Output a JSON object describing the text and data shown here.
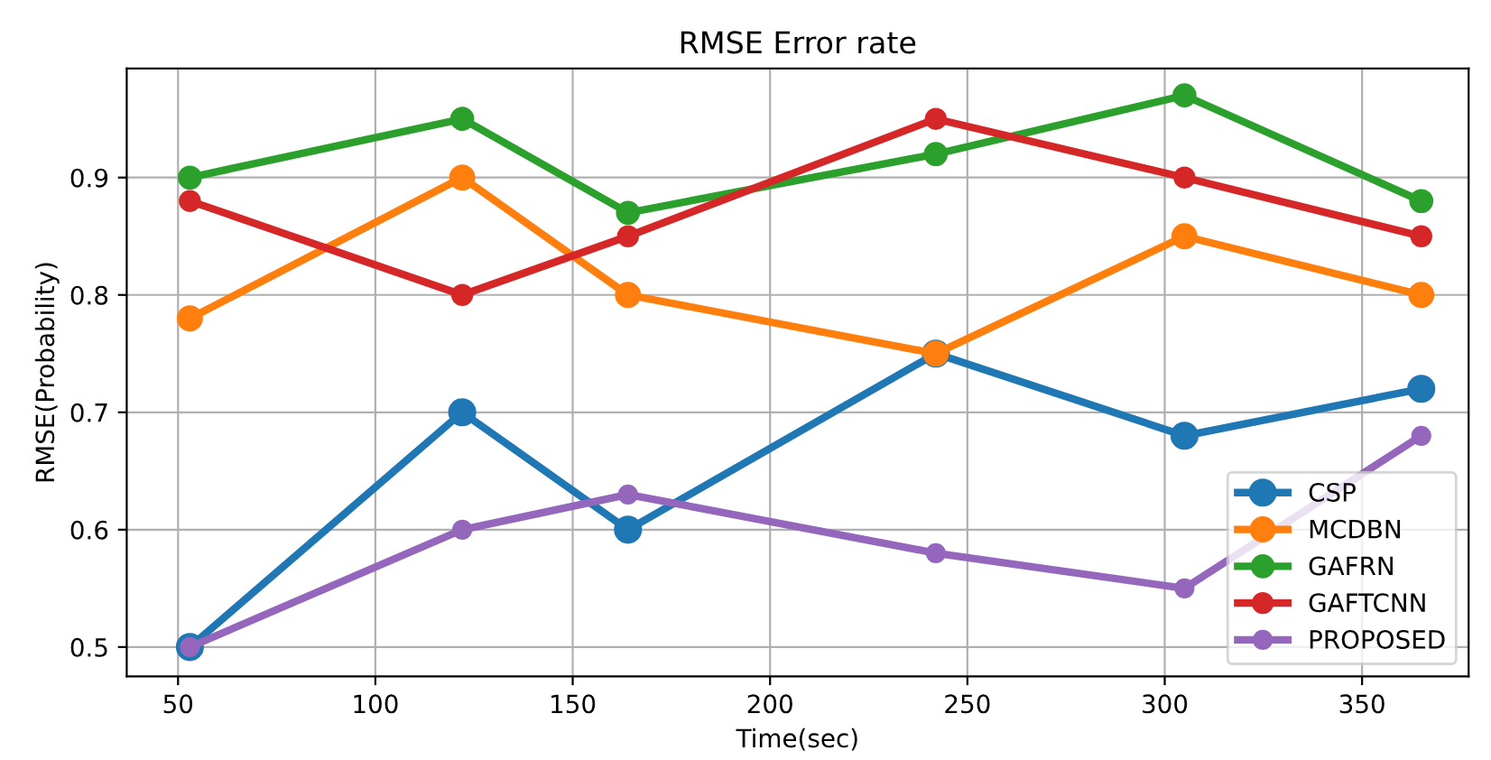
{
  "chart_data": {
    "type": "line",
    "title": "RMSE Error rate",
    "xlabel": "Time(sec)",
    "ylabel": "RMSE(Probability)",
    "x": [
      53,
      122,
      164,
      242,
      305,
      365
    ],
    "series": [
      {
        "name": "CSP",
        "color": "#1f77b4",
        "values": [
          0.5,
          0.7,
          0.6,
          0.75,
          0.68,
          0.72
        ]
      },
      {
        "name": "MCDBN",
        "color": "#ff7f0e",
        "values": [
          0.78,
          0.9,
          0.8,
          0.75,
          0.85,
          0.8
        ]
      },
      {
        "name": "GAFRN",
        "color": "#2ca02c",
        "values": [
          0.9,
          0.95,
          0.87,
          0.92,
          0.97,
          0.88
        ]
      },
      {
        "name": "GAFTCNN",
        "color": "#d62728",
        "values": [
          0.88,
          0.8,
          0.85,
          0.95,
          0.9,
          0.85
        ]
      },
      {
        "name": "PROPOSED",
        "color": "#9467bd",
        "values": [
          0.5,
          0.6,
          0.63,
          0.58,
          0.55,
          0.68
        ]
      }
    ],
    "xlim": [
      37,
      377
    ],
    "xticks": [
      50,
      100,
      150,
      200,
      250,
      300,
      350
    ],
    "ylim": [
      0.475,
      0.993
    ],
    "yticks": [
      0.5,
      0.6,
      0.7,
      0.8,
      0.9
    ],
    "grid": true,
    "legend": "bottom right",
    "marker": "circle",
    "line_style": "solid"
  }
}
